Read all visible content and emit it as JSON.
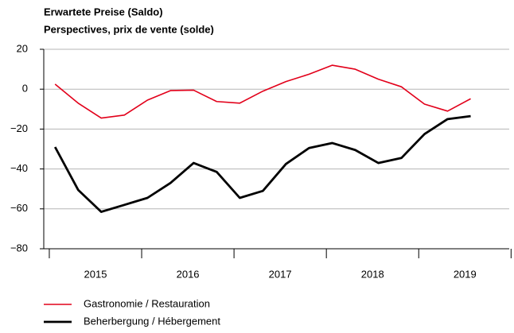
{
  "chart_data": {
    "type": "line",
    "title": "Erwartete Preise (Saldo)",
    "subtitle": "Perspectives, prix de vente (solde)",
    "x": [
      2015.0625,
      2015.3125,
      2015.5625,
      2015.8125,
      2016.0625,
      2016.3125,
      2016.5625,
      2016.8125,
      2017.0625,
      2017.3125,
      2017.5625,
      2017.8125,
      2018.0625,
      2018.3125,
      2018.5625,
      2018.8125,
      2019.0625,
      2019.3125,
      2019.5625
    ],
    "series": [
      {
        "name": "Gastronomie / Restauration",
        "color": "#e2001a",
        "width": 1.6,
        "values": [
          2.5,
          -7,
          -14.5,
          -13,
          -5.5,
          -0.7,
          -0.5,
          -6.2,
          -7,
          -1,
          3.8,
          7.5,
          12,
          10,
          5,
          1.2,
          -7.5,
          -11,
          -4.8
        ]
      },
      {
        "name": "Beherbergung / Hébergement",
        "color": "#000000",
        "width": 2.8,
        "values": [
          -29,
          -50.5,
          -61.5,
          -58,
          -54.5,
          -47,
          -37,
          -41.5,
          -54.5,
          -51,
          -37.5,
          -29.5,
          -27,
          -30.5,
          -37,
          -34.5,
          -22.5,
          -15,
          -13.5
        ]
      }
    ],
    "xlim": [
      2014.94,
      2019.98
    ],
    "xticks": [
      2015,
      2016,
      2017,
      2018,
      2019
    ],
    "ylim": [
      -80,
      20
    ],
    "yticks": [
      {
        "value": -80,
        "label": "−80"
      },
      {
        "value": -60,
        "label": "−60"
      },
      {
        "value": -40,
        "label": "−40"
      },
      {
        "value": -20,
        "label": "−20"
      },
      0,
      20
    ],
    "grid": true,
    "legend": "bottom"
  }
}
